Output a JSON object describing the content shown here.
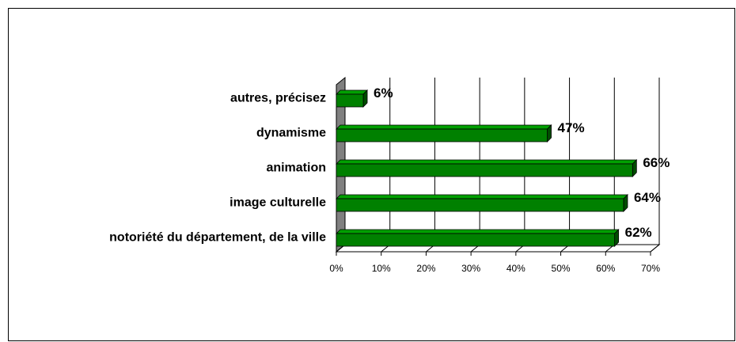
{
  "chart_data": {
    "type": "bar3d_horizontal",
    "categories": [
      "autres, précisez",
      "dynamisme",
      "animation",
      "image culturelle",
      "notoriété du département, de la ville"
    ],
    "values": [
      6,
      47,
      66,
      64,
      62
    ],
    "value_labels": [
      "6%",
      "47%",
      "66%",
      "64%",
      "62%"
    ],
    "color": "#008000",
    "xlim": [
      0,
      70
    ],
    "xticks": [
      {
        "value": 0,
        "label": "0%"
      },
      {
        "value": 10,
        "label": "10%"
      },
      {
        "value": 20,
        "label": "20%"
      },
      {
        "value": 30,
        "label": "30%"
      },
      {
        "value": 40,
        "label": "40%"
      },
      {
        "value": 50,
        "label": "50%"
      },
      {
        "value": 60,
        "label": "60%"
      },
      {
        "value": 70,
        "label": "70%"
      }
    ],
    "grid": true
  }
}
